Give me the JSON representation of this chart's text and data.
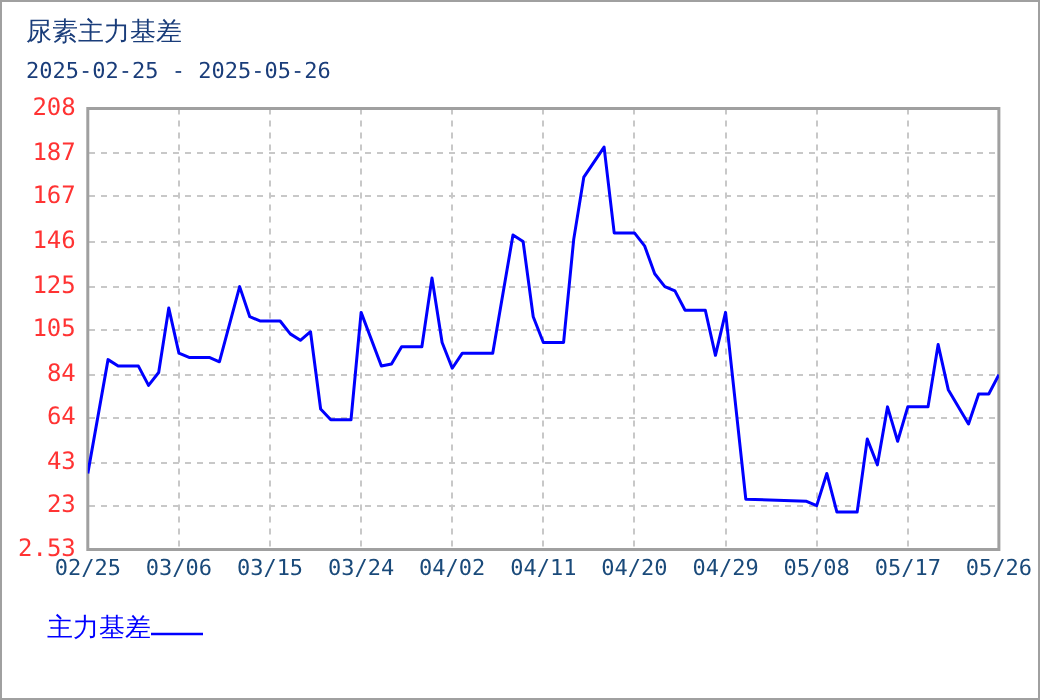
{
  "chart_data": {
    "type": "line",
    "title": "尿素主力基差",
    "subtitle": "2025-02-25 - 2025-05-26",
    "x": [
      "2025-02-25",
      "2025-02-27",
      "2025-02-28",
      "2025-03-02",
      "2025-03-03",
      "2025-03-04",
      "2025-03-05",
      "2025-03-06",
      "2025-03-07",
      "2025-03-09",
      "2025-03-10",
      "2025-03-12",
      "2025-03-13",
      "2025-03-14",
      "2025-03-16",
      "2025-03-17",
      "2025-03-18",
      "2025-03-19",
      "2025-03-20",
      "2025-03-21",
      "2025-03-23",
      "2025-03-24",
      "2025-03-26",
      "2025-03-27",
      "2025-03-28",
      "2025-03-30",
      "2025-03-31",
      "2025-04-01",
      "2025-04-02",
      "2025-04-03",
      "2025-04-06",
      "2025-04-08",
      "2025-04-09",
      "2025-04-10",
      "2025-04-11",
      "2025-04-13",
      "2025-04-14",
      "2025-04-15",
      "2025-04-17",
      "2025-04-18",
      "2025-04-20",
      "2025-04-21",
      "2025-04-22",
      "2025-04-23",
      "2025-04-24",
      "2025-04-25",
      "2025-04-27",
      "2025-04-28",
      "2025-04-29",
      "2025-05-01",
      "2025-05-07",
      "2025-05-08",
      "2025-05-09",
      "2025-05-10",
      "2025-05-12",
      "2025-05-13",
      "2025-05-14",
      "2025-05-15",
      "2025-05-16",
      "2025-05-17",
      "2025-05-19",
      "2025-05-20",
      "2025-05-21",
      "2025-05-23",
      "2025-05-24",
      "2025-05-25",
      "2025-05-26"
    ],
    "series": [
      {
        "name": "主力基差",
        "color": "#0000ff",
        "values": [
          38,
          91,
          88,
          88,
          79,
          85,
          115,
          94,
          92,
          92,
          90,
          125,
          111,
          109,
          109,
          103,
          100,
          104,
          68,
          63,
          63,
          113,
          88,
          89,
          97,
          97,
          129,
          99,
          87,
          94,
          94,
          149,
          146,
          111,
          99,
          99,
          147,
          176,
          190,
          150,
          150,
          144,
          131,
          125,
          123,
          114,
          114,
          93,
          113,
          26,
          25,
          23,
          38,
          20,
          20,
          54,
          42,
          69,
          53,
          69,
          69,
          98,
          77,
          61,
          75,
          75,
          84
        ]
      }
    ],
    "xlim": [
      "2025-02-25",
      "2025-05-26"
    ],
    "xticks": [
      {
        "value": "2025-02-25",
        "label": "02/25"
      },
      {
        "value": "2025-03-06",
        "label": "03/06"
      },
      {
        "value": "2025-03-15",
        "label": "03/15"
      },
      {
        "value": "2025-03-24",
        "label": "03/24"
      },
      {
        "value": "2025-04-02",
        "label": "04/02"
      },
      {
        "value": "2025-04-11",
        "label": "04/11"
      },
      {
        "value": "2025-04-20",
        "label": "04/20"
      },
      {
        "value": "2025-04-29",
        "label": "04/29"
      },
      {
        "value": "2025-05-08",
        "label": "05/08"
      },
      {
        "value": "2025-05-17",
        "label": "05/17"
      },
      {
        "value": "2025-05-26",
        "label": "05/26"
      }
    ],
    "ylim": [
      2.53,
      208
    ],
    "yticks": [
      2.53,
      23,
      43,
      64,
      84,
      105,
      125,
      146,
      167,
      187,
      208
    ],
    "grid": true,
    "legend": "bottom left",
    "marker": "none",
    "line_style": "solid"
  }
}
